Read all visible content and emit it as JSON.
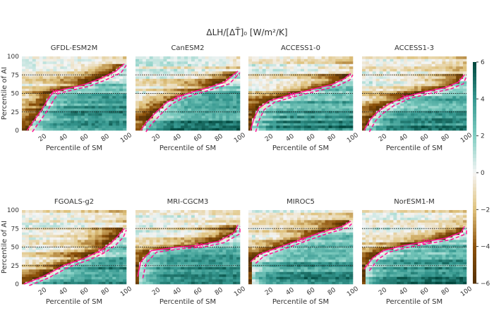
{
  "chart_data": {
    "type": "heatmap",
    "title": "ΔLH/[ΔT̄]₀ [W/m²/K]",
    "xlabel": "Percentile of SM",
    "ylabel": "Percentile of AI",
    "xlim": [
      0,
      100
    ],
    "ylim": [
      0,
      100
    ],
    "xticks": [
      20,
      40,
      60,
      80,
      100
    ],
    "yticks": [
      0,
      25,
      50,
      75,
      100
    ],
    "reference_lines_ai": [
      25,
      50,
      75
    ],
    "colorbar": {
      "range": [
        -6,
        6
      ],
      "ticks": [
        6,
        4,
        2,
        0,
        -2,
        -4,
        -6
      ],
      "colormap": "BrBG"
    },
    "contour_label": "20",
    "contour_color": "#ff1493",
    "panels": [
      {
        "title": "GFDL-ESM2M",
        "contour": [
          [
            5,
            0
          ],
          [
            10,
            10
          ],
          [
            15,
            20
          ],
          [
            20,
            30
          ],
          [
            25,
            42
          ],
          [
            30,
            52
          ],
          [
            45,
            57
          ],
          [
            60,
            62
          ],
          [
            75,
            70
          ],
          [
            90,
            80
          ],
          [
            98,
            90
          ]
        ]
      },
      {
        "title": "CanESM2",
        "contour": [
          [
            5,
            0
          ],
          [
            10,
            10
          ],
          [
            20,
            25
          ],
          [
            30,
            38
          ],
          [
            40,
            45
          ],
          [
            55,
            52
          ],
          [
            70,
            58
          ],
          [
            85,
            65
          ],
          [
            98,
            80
          ]
        ]
      },
      {
        "title": "ACCESS1-0",
        "contour": [
          [
            2,
            0
          ],
          [
            5,
            15
          ],
          [
            10,
            30
          ],
          [
            20,
            40
          ],
          [
            40,
            48
          ],
          [
            60,
            55
          ],
          [
            80,
            62
          ],
          [
            92,
            70
          ],
          [
            98,
            77
          ]
        ]
      },
      {
        "title": "ACCESS1-3",
        "contour": [
          [
            2,
            0
          ],
          [
            8,
            15
          ],
          [
            15,
            25
          ],
          [
            25,
            35
          ],
          [
            40,
            45
          ],
          [
            60,
            52
          ],
          [
            80,
            58
          ],
          [
            92,
            65
          ],
          [
            98,
            75
          ]
        ]
      },
      {
        "title": "FGOALS-g2",
        "contour": [
          [
            2,
            0
          ],
          [
            20,
            10
          ],
          [
            40,
            25
          ],
          [
            60,
            35
          ],
          [
            75,
            45
          ],
          [
            85,
            55
          ],
          [
            92,
            65
          ],
          [
            98,
            75
          ]
        ]
      },
      {
        "title": "MRI-CGCM3",
        "contour": [
          [
            2,
            10
          ],
          [
            5,
            30
          ],
          [
            15,
            45
          ],
          [
            40,
            50
          ],
          [
            60,
            52
          ],
          [
            80,
            58
          ],
          [
            95,
            70
          ],
          [
            98,
            80
          ]
        ]
      },
      {
        "title": "MIROC5",
        "contour": [
          [
            2,
            30
          ],
          [
            10,
            40
          ],
          [
            30,
            50
          ],
          [
            50,
            60
          ],
          [
            70,
            70
          ],
          [
            90,
            78
          ],
          [
            98,
            85
          ]
        ]
      },
      {
        "title": "NorESM1-M",
        "contour": [
          [
            2,
            20
          ],
          [
            10,
            35
          ],
          [
            20,
            45
          ],
          [
            40,
            52
          ],
          [
            60,
            57
          ],
          [
            80,
            62
          ],
          [
            95,
            70
          ],
          [
            98,
            78
          ]
        ]
      }
    ]
  }
}
